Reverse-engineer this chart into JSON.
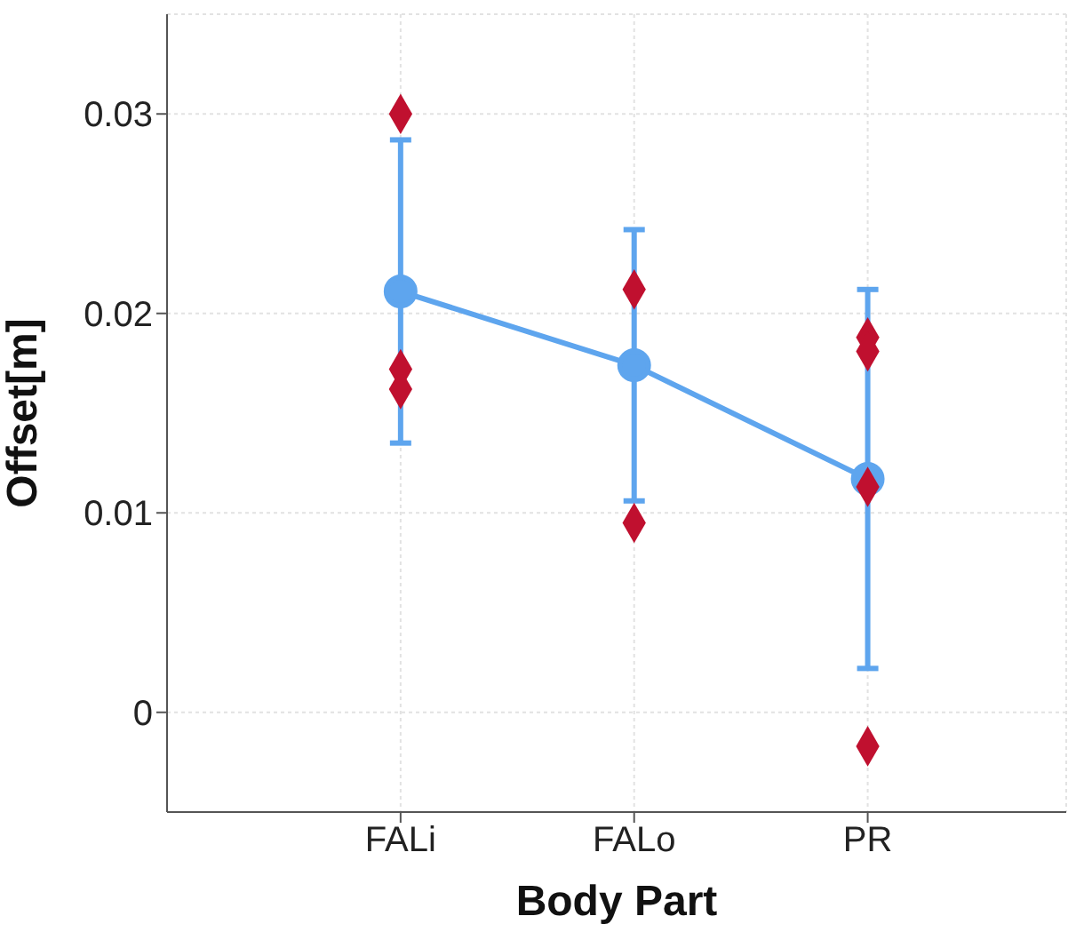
{
  "chart_data": {
    "type": "line",
    "xlabel": "Body Part",
    "ylabel": "Offset[m]",
    "categories": [
      "FALi",
      "FALo",
      "PR"
    ],
    "series": [
      {
        "color": "#5ea5ee",
        "values": [
          0.0211,
          0.0174,
          0.0117
        ],
        "errors": [
          0.0076,
          0.0068,
          0.0095
        ],
        "marker": "circle"
      },
      {
        "type": "scatter",
        "color": "#c0102f",
        "marker": "diamond",
        "x": [
          "FALi",
          "FALi",
          "FALi",
          "FALo",
          "FALo",
          "FALo",
          "PR",
          "PR",
          "PR",
          "PR"
        ],
        "values": [
          0.03,
          0.0172,
          0.0162,
          null,
          0.0212,
          0.0095,
          0.0188,
          0.0181,
          0.0113,
          -0.0017
        ]
      }
    ],
    "ylim": [
      -0.005,
      0.035
    ],
    "yticks": [
      0,
      0.01,
      0.02,
      0.03
    ],
    "grid": true,
    "legend": false
  }
}
